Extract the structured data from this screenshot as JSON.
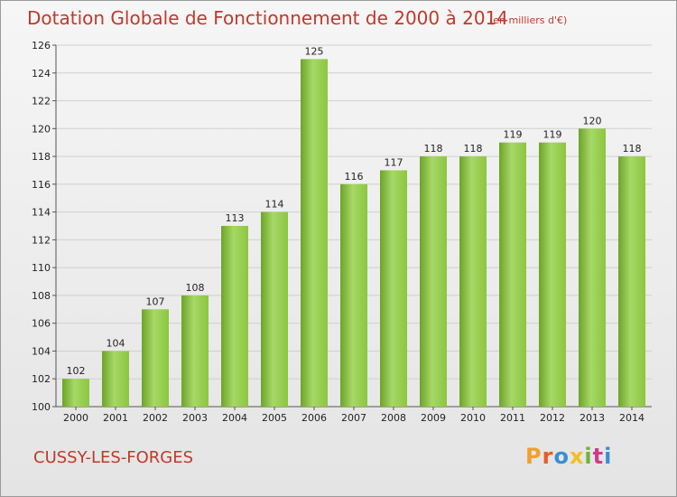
{
  "chart_data": {
    "type": "bar",
    "title": "Dotation Globale de Fonctionnement de 2000 à 2014",
    "subtitle": "(en milliers d'€)",
    "categories": [
      "2000",
      "2001",
      "2002",
      "2003",
      "2004",
      "2005",
      "2006",
      "2007",
      "2008",
      "2009",
      "2010",
      "2011",
      "2012",
      "2013",
      "2014"
    ],
    "values": [
      102,
      104,
      107,
      108,
      113,
      114,
      125,
      116,
      117,
      118,
      118,
      119,
      119,
      120,
      118
    ],
    "ylim": [
      100,
      126
    ],
    "yticks": [
      100,
      102,
      104,
      106,
      108,
      110,
      112,
      114,
      116,
      118,
      120,
      122,
      124,
      126
    ],
    "grid": true,
    "bar_color": "#8cc63f",
    "bar_color_light": "#a6d866",
    "bar_color_dark": "#6ea32a"
  },
  "footer": {
    "commune": "CUSSY-LES-FORGES",
    "logo_text": "Proxiti",
    "logo_colors": [
      "#f0a030",
      "#e85c2a",
      "#3a8fd0",
      "#f0c020",
      "#6cb33e",
      "#d03a8a",
      "#3a8fd0"
    ]
  }
}
